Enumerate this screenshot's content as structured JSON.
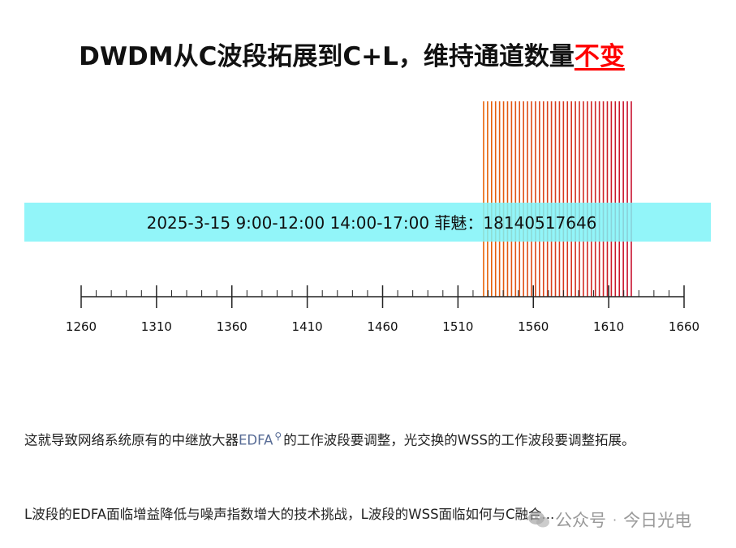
{
  "title": {
    "prefix": "DWDM从C波段拓展到C+L，维持通道数量",
    "highlight": "不变",
    "highlight_color": "#ff0000"
  },
  "banner": {
    "text": "2025-3-15  9:00-12:00  14:00-17:00   菲魅：18140517646",
    "color": "#7ff3f8"
  },
  "chart_data": {
    "type": "line",
    "axis": {
      "min": 1260,
      "max": 1660,
      "major_step": 50,
      "minor_step": 10,
      "tick_labels": [
        "1260",
        "1310",
        "1360",
        "1410",
        "1460",
        "1510",
        "1560",
        "1610",
        "1660"
      ]
    },
    "channels": {
      "start": 1527,
      "end": 1625,
      "count": 38,
      "color_from": "#e8650a",
      "color_to": "#c8102e"
    }
  },
  "article": {
    "p1_before": "这就导致网络系统原有的中继放大器",
    "p1_link": "EDFA",
    "p1_after": "的工作波段要调整，光交换的WSS的工作波段要调整拓展。",
    "p2": "L波段的EDFA面临增益降低与噪声指数增大的技术挑战，L波段的WSS面临如何与C融合..."
  },
  "watermark": {
    "text1": "公众号",
    "sep": "·",
    "text2": "今日光电"
  }
}
